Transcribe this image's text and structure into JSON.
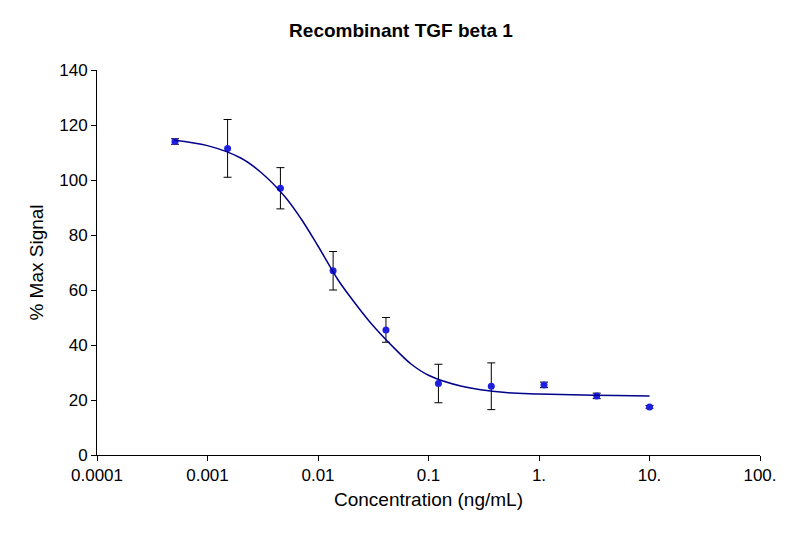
{
  "chart_data": {
    "type": "scatter",
    "title": "Recombinant TGF beta 1",
    "x_label": "Concentration (ng/mL)",
    "y_label": "% Max Signal",
    "log": "x",
    "grid": false,
    "xlim": [
      0.0001,
      100
    ],
    "xticks": [
      0.0001,
      0.001,
      0.01,
      0.1,
      {
        "value": 1,
        "label": "1."
      },
      {
        "value": 10,
        "label": "10."
      },
      {
        "value": 100,
        "label": "100."
      }
    ],
    "ylim": [
      0,
      140
    ],
    "yticks": [
      0,
      20,
      40,
      60,
      80,
      100,
      120,
      140
    ],
    "series": [
      {
        "type": "scatter",
        "marker": "circle",
        "color": "#1f1fe0",
        "x": [
          0.000508,
          0.00152,
          0.00457,
          0.0137,
          0.0412,
          0.123,
          0.37,
          1.11,
          3.33,
          10
        ],
        "values": [
          114,
          111.5,
          97,
          67,
          45.5,
          26,
          25,
          25.5,
          21.5,
          17.5
        ],
        "error": [
          1,
          10.5,
          7.5,
          7,
          4.5,
          7,
          8.5,
          1,
          1,
          0.5
        ]
      },
      {
        "type": "line",
        "line_style": "solid",
        "color": "#00008b",
        "x": [
          0.0005,
          0.001,
          0.002,
          0.003,
          0.005,
          0.007,
          0.01,
          0.015,
          0.02,
          0.03,
          0.05,
          0.07,
          0.1,
          0.2,
          0.5,
          1,
          2,
          5,
          10
        ],
        "values": [
          114.5,
          112.5,
          108,
          103,
          94,
          86,
          76,
          64,
          57,
          48,
          38.5,
          33,
          29,
          25,
          22.7,
          22.2,
          21.9,
          21.6,
          21.5
        ]
      }
    ]
  }
}
